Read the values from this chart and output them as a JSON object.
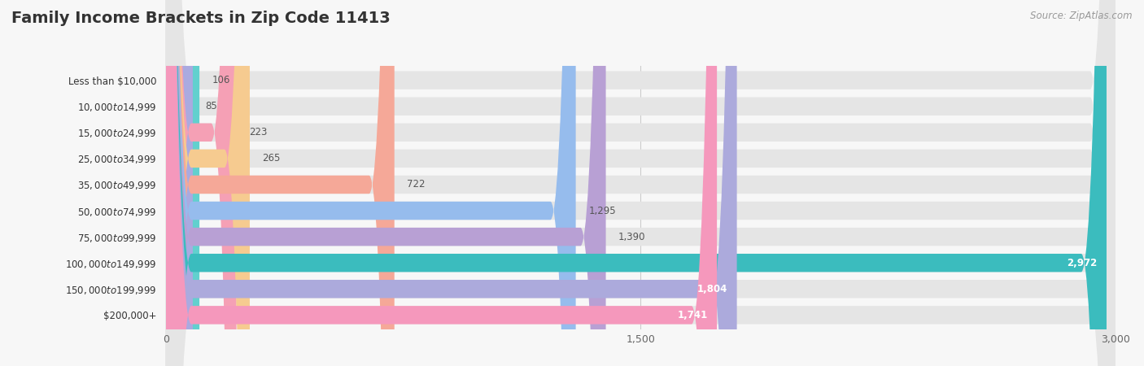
{
  "title": "Family Income Brackets in Zip Code 11413",
  "source": "Source: ZipAtlas.com",
  "categories": [
    "Less than $10,000",
    "$10,000 to $14,999",
    "$15,000 to $24,999",
    "$25,000 to $34,999",
    "$35,000 to $49,999",
    "$50,000 to $74,999",
    "$75,000 to $99,999",
    "$100,000 to $149,999",
    "$150,000 to $199,999",
    "$200,000+"
  ],
  "values": [
    106,
    85,
    223,
    265,
    722,
    1295,
    1390,
    2972,
    1804,
    1741
  ],
  "bar_colors": [
    "#62D0CE",
    "#AAAAE0",
    "#F5A0B5",
    "#F6CB90",
    "#F5A898",
    "#96BCED",
    "#B8A0D4",
    "#3BBCBE",
    "#ACAADC",
    "#F598BC"
  ],
  "bg_color": "#f7f7f7",
  "bar_bg_color": "#e5e5e5",
  "xlim": [
    0,
    3000
  ],
  "xticks": [
    0,
    1500,
    3000
  ],
  "xtick_labels": [
    "0",
    "1,500",
    "3,000"
  ],
  "title_fontsize": 14,
  "label_fontsize": 8.5,
  "value_fontsize": 8.5
}
